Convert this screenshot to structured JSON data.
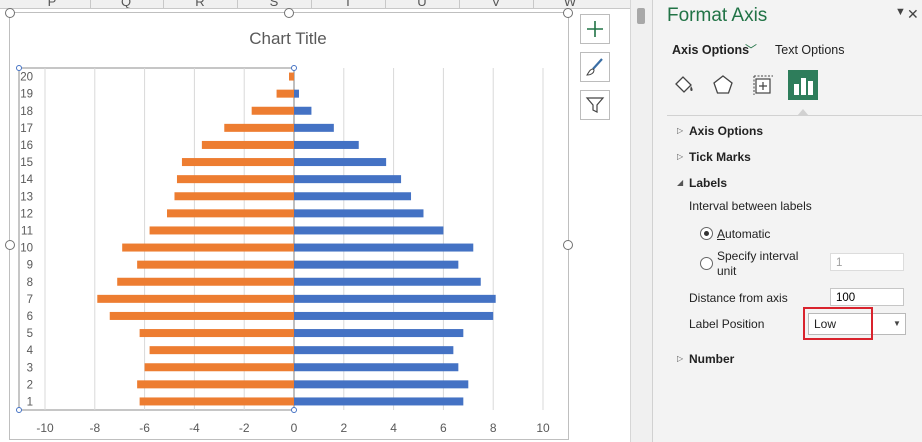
{
  "spreadsheet": {
    "column_headers": [
      "P",
      "Q",
      "R",
      "S",
      "T",
      "U",
      "V",
      "W"
    ]
  },
  "chart_tools": {
    "buttons": [
      {
        "name": "chart-elements-button",
        "icon": "plus-icon"
      },
      {
        "name": "chart-styles-button",
        "icon": "brush-icon"
      },
      {
        "name": "chart-filters-button",
        "icon": "filter-icon"
      }
    ]
  },
  "chart_data": {
    "type": "bar",
    "orientation": "horizontal",
    "title": "Chart Title",
    "categories": [
      "1",
      "2",
      "3",
      "4",
      "5",
      "6",
      "7",
      "8",
      "9",
      "10",
      "11",
      "12",
      "13",
      "14",
      "15",
      "16",
      "17",
      "18",
      "19",
      "20"
    ],
    "series": [
      {
        "color": "#ed7d31",
        "values": [
          -6.2,
          -6.3,
          -6.0,
          -5.8,
          -6.2,
          -7.4,
          -7.9,
          -7.1,
          -6.3,
          -6.9,
          -5.8,
          -5.1,
          -4.8,
          -4.7,
          -4.5,
          -3.7,
          -2.8,
          -1.7,
          -0.7,
          -0.2
        ]
      },
      {
        "color": "#4472c4",
        "values": [
          6.8,
          7.0,
          6.6,
          6.4,
          6.8,
          8.0,
          8.1,
          7.5,
          6.6,
          7.2,
          6.0,
          5.2,
          4.7,
          4.3,
          3.7,
          2.6,
          1.6,
          0.7,
          0.2,
          0.0
        ]
      }
    ],
    "x_ticks": [
      "-10",
      "-8",
      "-6",
      "-4",
      "-2",
      "0",
      "2",
      "4",
      "6",
      "8",
      "10"
    ],
    "xlim": [
      -10,
      10
    ],
    "gridlines": "vertical",
    "legend": "none",
    "label_position": "Low"
  },
  "format_axis_pane": {
    "title": "Format Axis",
    "tabs": {
      "axis_options": "Axis Options",
      "text_options": "Text Options"
    },
    "sections": {
      "axis_options": "Axis Options",
      "tick_marks": "Tick Marks",
      "labels": "Labels",
      "number": "Number"
    },
    "labels": {
      "interval_heading": "Interval between labels",
      "automatic": "Automatic",
      "specify_line1": "Specify interval",
      "specify_line2": "unit",
      "specify_value": "1",
      "distance_label": "Distance from axis",
      "distance_value": "100",
      "label_position_label": "Label Position",
      "label_position_value": "Low"
    },
    "colors": {
      "accent": "#217346",
      "active_icon_bg": "#2e7d5b",
      "highlight": "#d9232d"
    }
  }
}
